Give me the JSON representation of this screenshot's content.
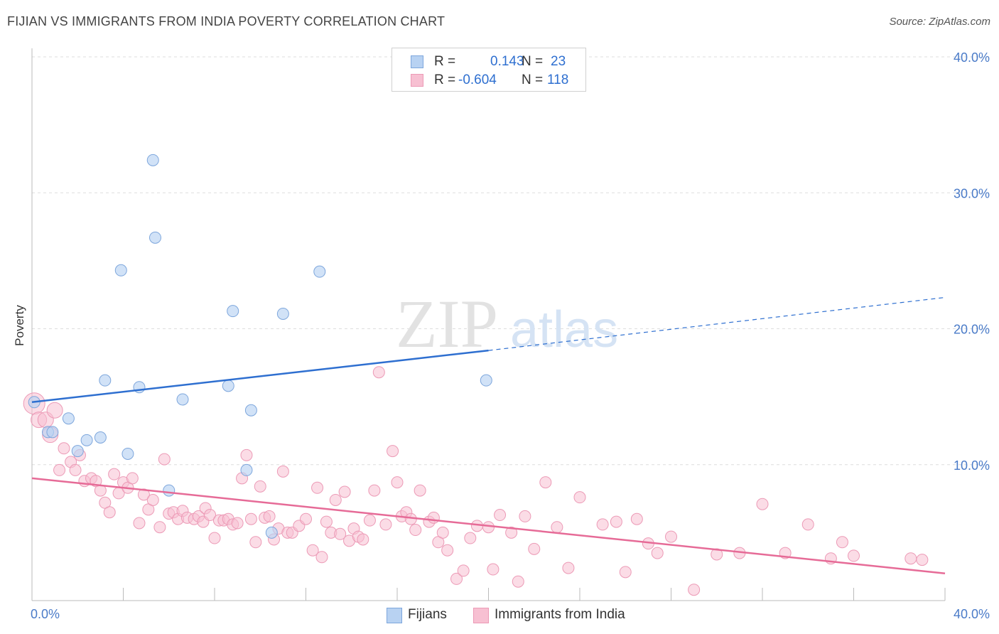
{
  "title": "FIJIAN VS IMMIGRANTS FROM INDIA POVERTY CORRELATION CHART",
  "source": "Source: ZipAtlas.com",
  "watermark": {
    "zip": "ZIP",
    "atlas": "atlas"
  },
  "stats_legend": [
    {
      "r_label": "R =",
      "r_value": "0.143",
      "n_label": "N =",
      "n_value": "23"
    },
    {
      "r_label": "R =",
      "r_value": "-0.604",
      "n_label": "N =",
      "n_value": "118"
    }
  ],
  "colors": {
    "fijian_fill": "#b8d2f2",
    "fijian_stroke": "#7da6dc",
    "fijian_line": "#2e6fd0",
    "india_fill": "#f7c0d2",
    "india_stroke": "#ec9ab6",
    "india_line": "#e66b97",
    "grid": "#dddddd",
    "axis_text": "#4a7bc8"
  },
  "chart_data": {
    "type": "scatter",
    "title": "FIJIAN VS IMMIGRANTS FROM INDIA POVERTY CORRELATION CHART",
    "xlabel": "",
    "ylabel": "Poverty",
    "xlim": [
      0,
      40
    ],
    "ylim": [
      0,
      40
    ],
    "x_tick_labels": [
      "0.0%",
      "40.0%"
    ],
    "y_ticks": [
      10,
      20,
      30,
      40
    ],
    "y_tick_labels": [
      "10.0%",
      "20.0%",
      "30.0%",
      "40.0%"
    ],
    "grid": true,
    "legend": [
      "Fijians",
      "Immigrants from India"
    ],
    "series": [
      {
        "name": "Fijians",
        "r": 0.143,
        "n": 23,
        "trend": {
          "x0": 0,
          "y0": 14.6,
          "x1": 20,
          "y1": 18.4,
          "x_end": 40,
          "y_end": 22.3
        },
        "points": [
          [
            0.1,
            14.6
          ],
          [
            0.7,
            12.4
          ],
          [
            0.9,
            12.4
          ],
          [
            1.6,
            13.4
          ],
          [
            2.0,
            11.0
          ],
          [
            2.4,
            11.8
          ],
          [
            3.0,
            12.0
          ],
          [
            3.2,
            16.2
          ],
          [
            3.9,
            24.3
          ],
          [
            4.2,
            10.8
          ],
          [
            4.7,
            15.7
          ],
          [
            5.3,
            32.4
          ],
          [
            5.4,
            26.7
          ],
          [
            6.0,
            8.1
          ],
          [
            6.6,
            14.8
          ],
          [
            8.6,
            15.8
          ],
          [
            8.8,
            21.3
          ],
          [
            9.4,
            9.6
          ],
          [
            9.6,
            14.0
          ],
          [
            10.5,
            5.0
          ],
          [
            11.0,
            21.1
          ],
          [
            12.6,
            24.2
          ],
          [
            19.9,
            16.2
          ]
        ]
      },
      {
        "name": "Immigrants from India",
        "r": -0.604,
        "n": 118,
        "trend": {
          "x0": 0,
          "y0": 9.0,
          "x1": 40,
          "y1": 2.0
        },
        "points": [
          [
            0.1,
            14.5
          ],
          [
            0.3,
            13.3
          ],
          [
            0.6,
            13.3
          ],
          [
            0.8,
            12.2
          ],
          [
            1.0,
            14.0
          ],
          [
            1.2,
            9.6
          ],
          [
            1.4,
            11.2
          ],
          [
            1.7,
            10.2
          ],
          [
            1.9,
            9.6
          ],
          [
            2.1,
            10.7
          ],
          [
            2.3,
            8.8
          ],
          [
            2.6,
            9.0
          ],
          [
            2.8,
            8.8
          ],
          [
            3.0,
            8.1
          ],
          [
            3.2,
            7.2
          ],
          [
            3.4,
            6.5
          ],
          [
            3.6,
            9.3
          ],
          [
            3.8,
            7.9
          ],
          [
            4.0,
            8.7
          ],
          [
            4.2,
            8.3
          ],
          [
            4.4,
            9.0
          ],
          [
            4.7,
            5.7
          ],
          [
            4.9,
            7.8
          ],
          [
            5.1,
            6.7
          ],
          [
            5.3,
            7.4
          ],
          [
            5.6,
            5.4
          ],
          [
            5.8,
            10.4
          ],
          [
            6.0,
            6.4
          ],
          [
            6.2,
            6.5
          ],
          [
            6.4,
            6.0
          ],
          [
            6.6,
            6.6
          ],
          [
            6.8,
            6.1
          ],
          [
            7.1,
            6.0
          ],
          [
            7.3,
            6.2
          ],
          [
            7.5,
            5.8
          ],
          [
            7.6,
            6.8
          ],
          [
            7.8,
            6.3
          ],
          [
            8.0,
            4.6
          ],
          [
            8.2,
            5.9
          ],
          [
            8.4,
            5.9
          ],
          [
            8.6,
            6.0
          ],
          [
            8.8,
            5.6
          ],
          [
            9.0,
            5.7
          ],
          [
            9.2,
            9.0
          ],
          [
            9.4,
            10.7
          ],
          [
            9.6,
            6.0
          ],
          [
            9.8,
            4.3
          ],
          [
            10.0,
            8.4
          ],
          [
            10.2,
            6.1
          ],
          [
            10.4,
            6.2
          ],
          [
            10.6,
            4.5
          ],
          [
            10.8,
            5.3
          ],
          [
            11.0,
            9.5
          ],
          [
            11.2,
            5.0
          ],
          [
            11.4,
            5.0
          ],
          [
            11.7,
            5.5
          ],
          [
            12.0,
            6.0
          ],
          [
            12.3,
            3.7
          ],
          [
            12.5,
            8.3
          ],
          [
            12.7,
            3.2
          ],
          [
            12.9,
            5.8
          ],
          [
            13.1,
            5.0
          ],
          [
            13.3,
            7.4
          ],
          [
            13.5,
            4.9
          ],
          [
            13.7,
            8.0
          ],
          [
            13.9,
            4.4
          ],
          [
            14.1,
            5.3
          ],
          [
            14.3,
            4.7
          ],
          [
            14.5,
            4.5
          ],
          [
            14.8,
            5.9
          ],
          [
            15.0,
            8.1
          ],
          [
            15.2,
            16.8
          ],
          [
            15.5,
            5.6
          ],
          [
            15.8,
            11.0
          ],
          [
            16.0,
            8.7
          ],
          [
            16.2,
            6.2
          ],
          [
            16.4,
            6.5
          ],
          [
            16.6,
            6.0
          ],
          [
            16.8,
            5.2
          ],
          [
            17.0,
            8.1
          ],
          [
            17.4,
            5.8
          ],
          [
            17.6,
            6.1
          ],
          [
            17.8,
            4.3
          ],
          [
            18.0,
            5.0
          ],
          [
            18.2,
            3.7
          ],
          [
            18.6,
            1.6
          ],
          [
            18.9,
            2.2
          ],
          [
            19.2,
            4.6
          ],
          [
            19.5,
            5.5
          ],
          [
            20.0,
            5.4
          ],
          [
            20.2,
            2.3
          ],
          [
            20.5,
            6.3
          ],
          [
            21.0,
            5.0
          ],
          [
            21.3,
            1.4
          ],
          [
            21.6,
            6.2
          ],
          [
            22.0,
            3.8
          ],
          [
            22.5,
            8.7
          ],
          [
            23.0,
            5.4
          ],
          [
            23.5,
            2.4
          ],
          [
            24.0,
            7.6
          ],
          [
            25.0,
            5.6
          ],
          [
            25.6,
            5.8
          ],
          [
            26.0,
            2.1
          ],
          [
            26.5,
            6.0
          ],
          [
            27.0,
            4.2
          ],
          [
            27.4,
            3.5
          ],
          [
            28.0,
            4.7
          ],
          [
            29.0,
            0.8
          ],
          [
            30.0,
            3.4
          ],
          [
            31.0,
            3.5
          ],
          [
            32.0,
            7.1
          ],
          [
            33.0,
            3.5
          ],
          [
            34.0,
            5.6
          ],
          [
            35.0,
            3.1
          ],
          [
            35.5,
            4.3
          ],
          [
            36.0,
            3.3
          ],
          [
            38.5,
            3.1
          ],
          [
            39.0,
            3.0
          ]
        ]
      }
    ]
  },
  "bottom_legend": [
    {
      "label": "Fijians"
    },
    {
      "label": "Immigrants from India"
    }
  ]
}
